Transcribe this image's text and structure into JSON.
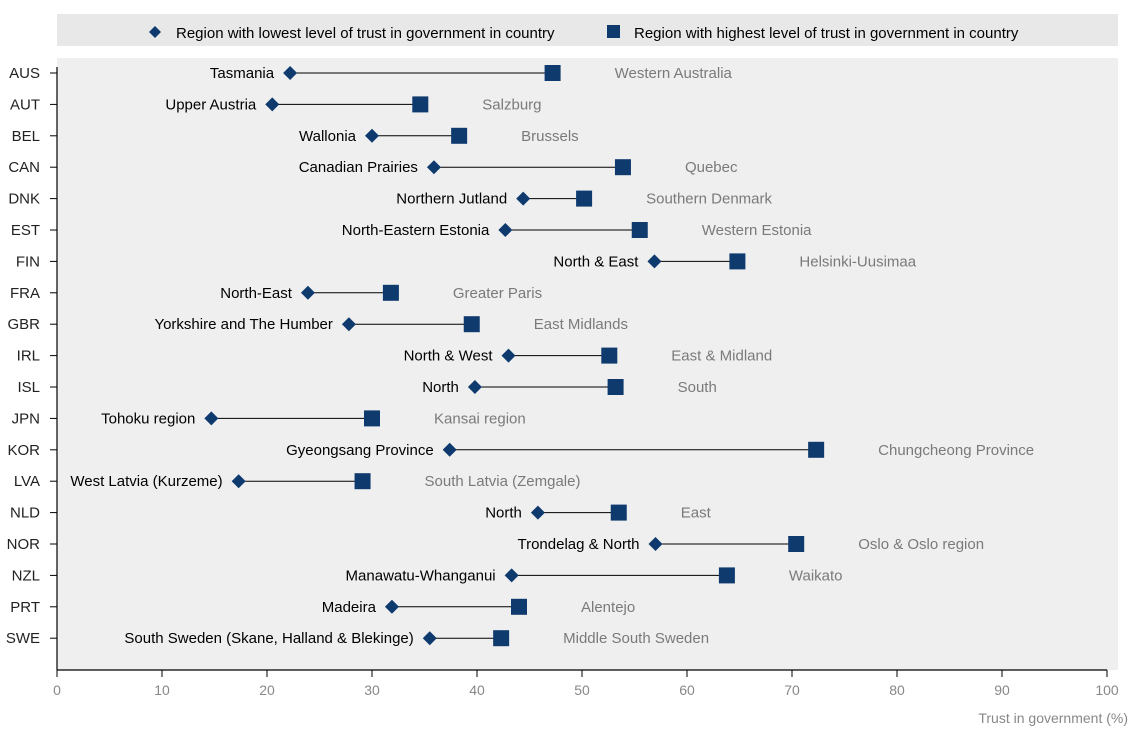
{
  "chart_data": {
    "type": "dot-range",
    "xlabel": "Trust in government (%)",
    "xlim": [
      0,
      100
    ],
    "xticks": [
      0,
      10,
      20,
      30,
      40,
      50,
      60,
      70,
      80,
      90,
      100
    ],
    "grid": false,
    "legend_position": "top",
    "series": [
      {
        "name": "Region with lowest level of trust in government in country",
        "marker": "diamond",
        "color": "#0e3a6e"
      },
      {
        "name": "Region with highest level of trust in government in country",
        "marker": "square",
        "color": "#0e3a6e"
      }
    ],
    "rows": [
      {
        "country": "AUS",
        "low_region": "Tasmania",
        "low": 22.2,
        "high_region": "Western Australia",
        "high": 47.2
      },
      {
        "country": "AUT",
        "low_region": "Upper Austria",
        "low": 20.5,
        "high_region": "Salzburg",
        "high": 34.6
      },
      {
        "country": "BEL",
        "low_region": "Wallonia",
        "low": 30.0,
        "high_region": "Brussels",
        "high": 38.3
      },
      {
        "country": "CAN",
        "low_region": "Canadian Prairies",
        "low": 35.9,
        "high_region": "Quebec",
        "high": 53.9
      },
      {
        "country": "DNK",
        "low_region": "Northern Jutland",
        "low": 44.4,
        "high_region": "Southern Denmark",
        "high": 50.2
      },
      {
        "country": "EST",
        "low_region": "North-Eastern Estonia",
        "low": 42.7,
        "high_region": "Western Estonia",
        "high": 55.5
      },
      {
        "country": "FIN",
        "low_region": "North & East",
        "low": 56.9,
        "high_region": "Helsinki-Uusimaa",
        "high": 64.8
      },
      {
        "country": "FRA",
        "low_region": "North-East",
        "low": 23.9,
        "high_region": "Greater Paris",
        "high": 31.8
      },
      {
        "country": "GBR",
        "low_region": "Yorkshire and The Humber",
        "low": 27.8,
        "high_region": "East Midlands",
        "high": 39.5
      },
      {
        "country": "IRL",
        "low_region": "North & West",
        "low": 43.0,
        "high_region": "East & Midland",
        "high": 52.6
      },
      {
        "country": "ISL",
        "low_region": "North",
        "low": 39.8,
        "high_region": "South",
        "high": 53.2
      },
      {
        "country": "JPN",
        "low_region": "Tohoku region",
        "low": 14.7,
        "high_region": "Kansai region",
        "high": 30.0
      },
      {
        "country": "KOR",
        "low_region": "Gyeongsang Province",
        "low": 37.4,
        "high_region": "Chungcheong Province",
        "high": 72.3
      },
      {
        "country": "LVA",
        "low_region": "West Latvia (Kurzeme)",
        "low": 17.3,
        "high_region": "South Latvia (Zemgale)",
        "high": 29.1
      },
      {
        "country": "NLD",
        "low_region": "North",
        "low": 45.8,
        "high_region": "East",
        "high": 53.5
      },
      {
        "country": "NOR",
        "low_region": "Trondelag & North",
        "low": 57.0,
        "high_region": "Oslo & Oslo region",
        "high": 70.4
      },
      {
        "country": "NZL",
        "low_region": "Manawatu-Whanganui",
        "low": 43.3,
        "high_region": "Waikato",
        "high": 63.8
      },
      {
        "country": "PRT",
        "low_region": "Madeira",
        "low": 31.9,
        "high_region": "Alentejo",
        "high": 44.0
      },
      {
        "country": "SWE",
        "low_region": "South Sweden (Skane, Halland & Blekinge)",
        "low": 35.5,
        "high_region": "Middle South Sweden",
        "high": 42.3
      }
    ]
  }
}
